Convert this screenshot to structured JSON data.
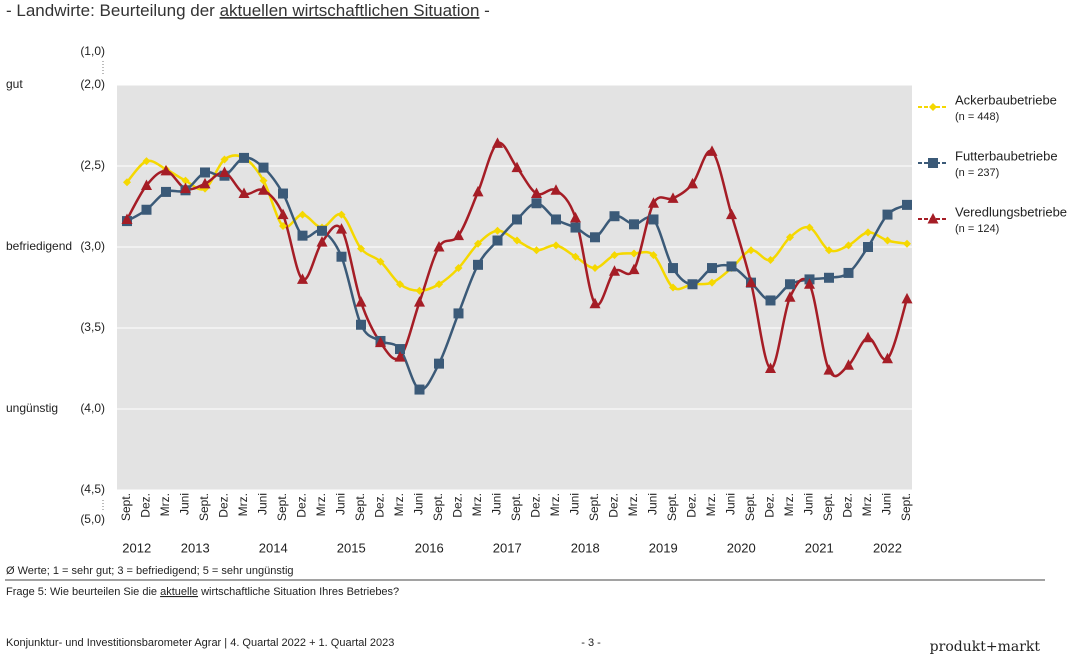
{
  "chart_data": {
    "type": "line",
    "title_prefix": "- Landwirte: Beurteilung der ",
    "title_underlined": "aktuellen wirtschaftlichen Situation",
    "title_suffix": " -",
    "categories": [
      "Sept.",
      "Dez.",
      "Mrz.",
      "Juni",
      "Sept.",
      "Dez.",
      "Mrz.",
      "Juni",
      "Sept.",
      "Dez.",
      "Mrz.",
      "Juni",
      "Sept.",
      "Dez.",
      "Mrz.",
      "Juni",
      "Sept.",
      "Dez.",
      "Mrz.",
      "Juni",
      "Sept.",
      "Dez.",
      "Mrz.",
      "Juni",
      "Sept.",
      "Dez.",
      "Mrz.",
      "Juni",
      "Sept.",
      "Dez.",
      "Mrz.",
      "Juni",
      "Sept.",
      "Dez.",
      "Mrz.",
      "Juni",
      "Sept.",
      "Dez.",
      "Mrz.",
      "Juni",
      "Sept."
    ],
    "years": [
      "2012",
      "2013",
      "2014",
      "2015",
      "2016",
      "2017",
      "2018",
      "2019",
      "2020",
      "2021",
      "2022"
    ],
    "series": [
      {
        "name": "Ackerbaubetriebe",
        "n_label": "(n = 448)",
        "color": "#f5d800",
        "marker": "diamond",
        "values": [
          2.6,
          2.47,
          2.52,
          2.59,
          2.64,
          2.46,
          2.45,
          2.59,
          2.87,
          2.8,
          2.88,
          2.8,
          3.01,
          3.09,
          3.23,
          3.27,
          3.23,
          3.13,
          2.98,
          2.9,
          2.96,
          3.02,
          2.99,
          3.06,
          3.13,
          3.05,
          3.04,
          3.05,
          3.25,
          3.23,
          3.22,
          3.13,
          3.02,
          3.08,
          2.94,
          2.88,
          3.02,
          2.99,
          2.91,
          2.96,
          2.98
        ]
      },
      {
        "name": "Futterbaubetriebe",
        "n_label": "(n = 237)",
        "color": "#3b5a78",
        "marker": "square",
        "values": [
          2.84,
          2.77,
          2.66,
          2.65,
          2.54,
          2.56,
          2.45,
          2.51,
          2.67,
          2.93,
          2.9,
          3.06,
          3.48,
          3.58,
          3.63,
          3.88,
          3.72,
          3.41,
          3.11,
          2.96,
          2.83,
          2.73,
          2.83,
          2.88,
          2.94,
          2.81,
          2.86,
          2.83,
          3.13,
          3.23,
          3.13,
          3.12,
          3.22,
          3.33,
          3.23,
          3.2,
          3.19,
          3.16,
          3.0,
          2.8,
          2.74
        ]
      },
      {
        "name": "Veredlungsbetriebe",
        "n_label": "(n = 124)",
        "color": "#a51d26",
        "marker": "triangle",
        "values": [
          2.83,
          2.62,
          2.53,
          2.64,
          2.61,
          2.54,
          2.67,
          2.65,
          2.8,
          3.2,
          2.97,
          2.89,
          3.34,
          3.59,
          3.68,
          3.34,
          3.0,
          2.93,
          2.66,
          2.36,
          2.51,
          2.67,
          2.65,
          2.82,
          3.35,
          3.15,
          3.14,
          2.73,
          2.7,
          2.61,
          2.41,
          2.8,
          3.22,
          3.75,
          3.31,
          3.23,
          3.76,
          3.73,
          3.56,
          3.69,
          3.32
        ]
      }
    ],
    "ylim": [
      2,
      4.5
    ],
    "y_inverted": true,
    "yticks": [
      {
        "value": 2,
        "label": "(2,0)"
      },
      {
        "value": 2.5,
        "label": "(2,5)"
      },
      {
        "value": 3,
        "label": "(3,0)"
      },
      {
        "value": 3.5,
        "label": "(3,5)"
      },
      {
        "value": 4,
        "label": "(4,0)"
      },
      {
        "value": 4.5,
        "label": "(4,5)"
      }
    ],
    "y_scale_ends": [
      {
        "value": 1,
        "label": "(1,0)"
      },
      {
        "value": 5,
        "label": "(5,0)"
      }
    ],
    "y_verbal_labels": [
      {
        "value": 2,
        "label": "gut"
      },
      {
        "value": 3,
        "label": "befriedigend"
      },
      {
        "value": 4,
        "label": "ungünstig"
      }
    ],
    "grid": true,
    "legend": "right",
    "note": "Ø Werte; 1 = sehr gut; 3 = befriedigend; 5 = sehr ungünstig"
  },
  "question": {
    "prefix": "Frage 5: Wie beurteilen Sie die ",
    "underlined": "aktuelle",
    "suffix": " wirtschaftliche Situation Ihres Betriebes?"
  },
  "footer": {
    "left": "Konjunktur- und Investitionsbarometer Agrar | 4. Quartal 2022 + 1. Quartal 2023",
    "page": "- 3 -",
    "brand": "produkt+markt"
  }
}
